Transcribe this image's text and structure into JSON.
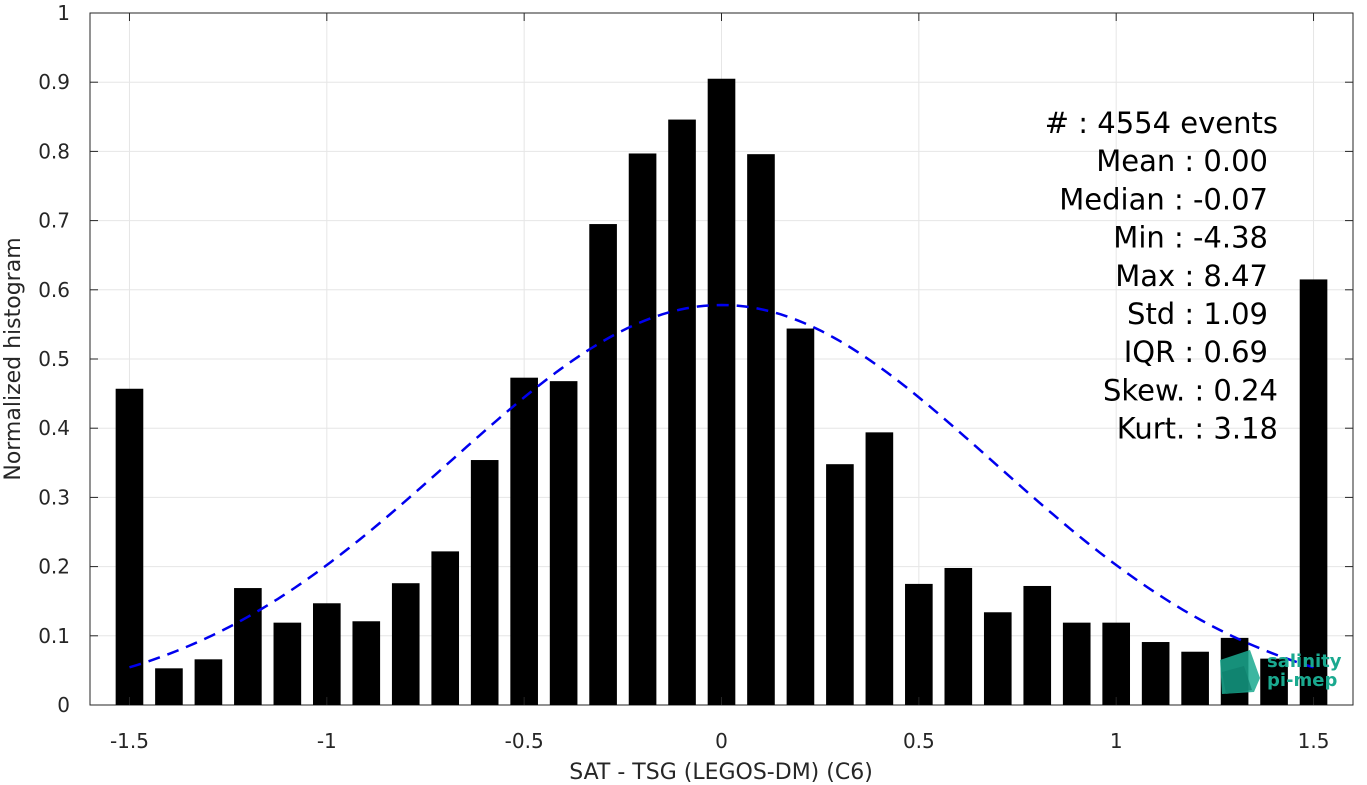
{
  "chart_data": {
    "type": "bar",
    "xlabel": "SAT - TSG (LEGOS-DM) (C6)",
    "ylabel": "Normalized histogram",
    "xlim": [
      -1.6,
      1.6
    ],
    "ylim": [
      0,
      1
    ],
    "grid": true,
    "x_ticks": [
      -1.5,
      -1,
      -0.5,
      0,
      0.5,
      1,
      1.5
    ],
    "x_tick_labels": [
      "-1.5",
      "-1",
      "-0.5",
      "0",
      "0.5",
      "1",
      "1.5"
    ],
    "y_ticks": [
      0,
      0.1,
      0.2,
      0.3,
      0.4,
      0.5,
      0.6,
      0.7,
      0.8,
      0.9,
      1
    ],
    "y_tick_labels": [
      "0",
      "0.1",
      "0.2",
      "0.3",
      "0.4",
      "0.5",
      "0.6",
      "0.7",
      "0.8",
      "0.9",
      "1"
    ],
    "bar_width": 0.07,
    "bar_color": "#000000",
    "x": [
      -1.5,
      -1.4,
      -1.3,
      -1.2,
      -1.1,
      -1.0,
      -0.9,
      -0.8,
      -0.7,
      -0.6,
      -0.5,
      -0.4,
      -0.3,
      -0.2,
      -0.1,
      0.0,
      0.1,
      0.2,
      0.3,
      0.4,
      0.5,
      0.6,
      0.7,
      0.8,
      0.9,
      1.0,
      1.1,
      1.2,
      1.3,
      1.4,
      1.5
    ],
    "values": [
      0.457,
      0.053,
      0.066,
      0.169,
      0.119,
      0.147,
      0.121,
      0.176,
      0.222,
      0.354,
      0.473,
      0.468,
      0.695,
      0.797,
      0.846,
      0.905,
      0.796,
      0.544,
      0.348,
      0.394,
      0.175,
      0.198,
      0.134,
      0.172,
      0.119,
      0.119,
      0.091,
      0.077,
      0.097,
      0.067,
      0.615
    ],
    "fit_curve": {
      "type": "normal",
      "mean": 0.0,
      "std": 0.69,
      "peak": 0.578,
      "x_range": [
        -1.5,
        1.5
      ],
      "color": "#0000ee",
      "style": "dashed"
    },
    "stats": [
      "#  : 4554 events",
      "Mean : 0.00",
      "Median : -0.07",
      "Min : -4.38",
      "Max : 8.47",
      "Std : 1.09",
      "IQR : 0.69",
      "Skew. : 0.24",
      "Kurt. : 3.18"
    ],
    "logo": {
      "line1": "salinity",
      "line2": "pi-mep",
      "color": "#1aa98f"
    }
  }
}
